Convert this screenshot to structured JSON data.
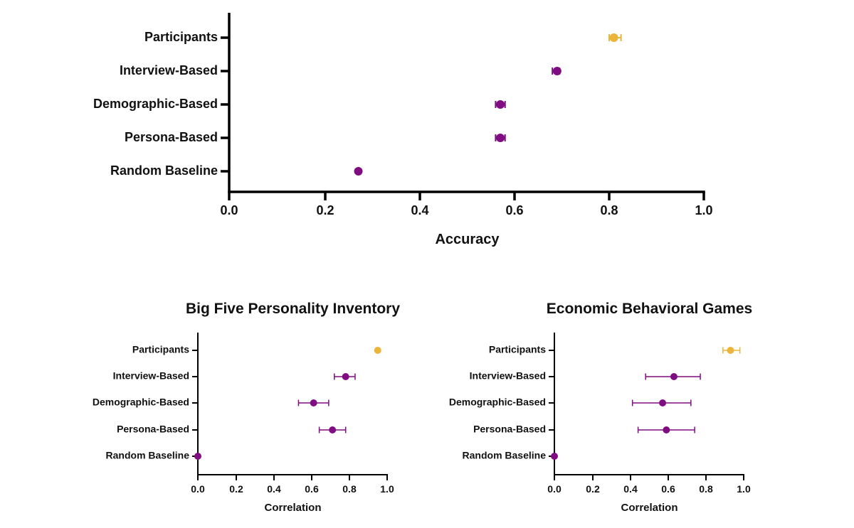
{
  "chart_data": [
    {
      "type": "scatter",
      "title": "",
      "xlabel": "Accuracy",
      "ylabel": "",
      "xlim": [
        0,
        1.0
      ],
      "xticks": [
        "0.0",
        "0.2",
        "0.4",
        "0.6",
        "0.8",
        "1.0"
      ],
      "grid": false,
      "categories": [
        "Participants",
        "Interview-Based",
        "Demographic-Based",
        "Persona-Based",
        "Random Baseline"
      ],
      "values": [
        0.81,
        0.69,
        0.57,
        0.57,
        0.27
      ],
      "error_low": [
        0.8,
        0.68,
        0.56,
        0.56,
        0.27
      ],
      "error_high": [
        0.825,
        0.695,
        0.58,
        0.58,
        0.27
      ],
      "colors": [
        "#EBB53A",
        "#7F0C80",
        "#7F0C80",
        "#7F0C80",
        "#7F0C80"
      ]
    },
    {
      "type": "scatter",
      "title": "Big Five Personality Inventory",
      "xlabel": "Correlation",
      "ylabel": "",
      "xlim": [
        0,
        1.0
      ],
      "xticks": [
        "0.0",
        "0.2",
        "0.4",
        "0.6",
        "0.8",
        "1.0"
      ],
      "grid": false,
      "categories": [
        "Participants",
        "Interview-Based",
        "Demographic-Based",
        "Persona-Based",
        "Random Baseline"
      ],
      "values": [
        0.95,
        0.78,
        0.61,
        0.71,
        0.0
      ],
      "error_low": [
        0.95,
        0.72,
        0.53,
        0.64,
        0.0
      ],
      "error_high": [
        0.95,
        0.83,
        0.69,
        0.78,
        0.0
      ],
      "colors": [
        "#EBB53A",
        "#7F0C80",
        "#7F0C80",
        "#7F0C80",
        "#7F0C80"
      ]
    },
    {
      "type": "scatter",
      "title": "Economic Behavioral Games",
      "xlabel": "Correlation",
      "ylabel": "",
      "xlim": [
        0,
        1.0
      ],
      "xticks": [
        "0.0",
        "0.2",
        "0.4",
        "0.6",
        "0.8",
        "1.0"
      ],
      "grid": false,
      "categories": [
        "Participants",
        "Interview-Based",
        "Demographic-Based",
        "Persona-Based",
        "Random Baseline"
      ],
      "values": [
        0.93,
        0.63,
        0.57,
        0.59,
        0.0
      ],
      "error_low": [
        0.89,
        0.48,
        0.41,
        0.44,
        0.0
      ],
      "error_high": [
        0.98,
        0.77,
        0.72,
        0.74,
        0.0
      ],
      "colors": [
        "#EBB53A",
        "#7F0C80",
        "#7F0C80",
        "#7F0C80",
        "#7F0C80"
      ]
    }
  ]
}
